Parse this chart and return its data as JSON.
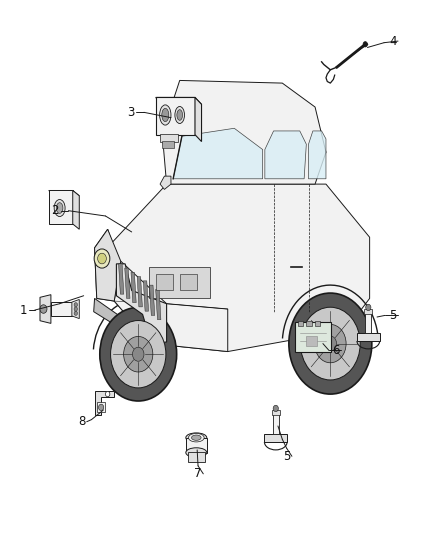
{
  "background_color": "#ffffff",
  "fig_width": 4.38,
  "fig_height": 5.33,
  "dpi": 100,
  "line_color": "#1a1a1a",
  "fill_light": "#f2f2f2",
  "fill_mid": "#e0e0e0",
  "fill_dark": "#c0c0c0",
  "number_font_size": 8.5,
  "callout_lines": [
    {
      "num": "1",
      "nx": 0.055,
      "ny": 0.418,
      "points": [
        [
          0.08,
          0.418
        ],
        [
          0.165,
          0.435
        ]
      ]
    },
    {
      "num": "2",
      "nx": 0.13,
      "ny": 0.6,
      "points": [
        [
          0.155,
          0.6
        ],
        [
          0.21,
          0.585
        ]
      ]
    },
    {
      "num": "3",
      "nx": 0.305,
      "ny": 0.785,
      "points": [
        [
          0.33,
          0.785
        ],
        [
          0.39,
          0.77
        ]
      ]
    },
    {
      "num": "4",
      "nx": 0.895,
      "ny": 0.922,
      "points": [
        [
          0.875,
          0.915
        ],
        [
          0.83,
          0.905
        ]
      ]
    },
    {
      "num": "5",
      "nx": 0.895,
      "ny": 0.405,
      "points": [
        [
          0.875,
          0.405
        ],
        [
          0.85,
          0.4
        ]
      ]
    },
    {
      "num": "5",
      "nx": 0.655,
      "ny": 0.148,
      "points": [
        [
          0.655,
          0.162
        ],
        [
          0.635,
          0.195
        ]
      ]
    },
    {
      "num": "6",
      "nx": 0.765,
      "ny": 0.345,
      "points": [
        [
          0.755,
          0.345
        ],
        [
          0.73,
          0.36
        ]
      ]
    },
    {
      "num": "7",
      "nx": 0.455,
      "ny": 0.115,
      "points": [
        [
          0.455,
          0.13
        ],
        [
          0.45,
          0.175
        ]
      ]
    },
    {
      "num": "8",
      "nx": 0.19,
      "ny": 0.21,
      "points": [
        [
          0.21,
          0.215
        ],
        [
          0.25,
          0.24
        ]
      ]
    }
  ]
}
